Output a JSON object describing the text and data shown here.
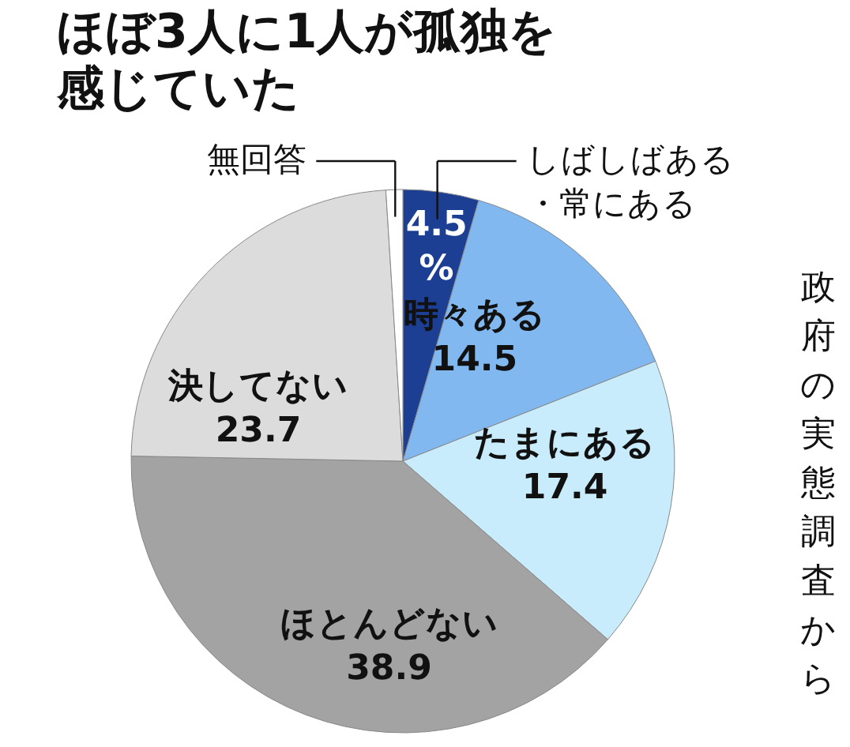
{
  "chart_data": {
    "type": "pie",
    "title": "ほぼ3人に1人が孤独を感じていた",
    "categories": [
      "しばしばある・常にある",
      "時々ある",
      "たまにある",
      "ほとんどない",
      "決してない",
      "無回答"
    ],
    "values": [
      4.5,
      14.5,
      17.4,
      38.9,
      23.7,
      1.0
    ],
    "value_labels": [
      "4.5%",
      "14.5",
      "17.4",
      "38.9",
      "23.7",
      null
    ],
    "colors": [
      "#1c3f94",
      "#80b8ef",
      "#c8ecfb",
      "#a3a3a3",
      "#dcdcdc",
      "#ffffff"
    ],
    "annotations": [
      "政府の実態調査から"
    ]
  }
}
